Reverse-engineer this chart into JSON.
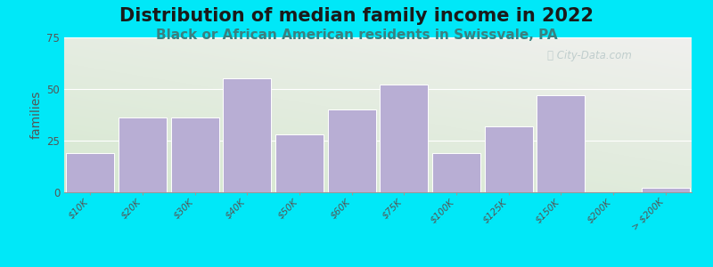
{
  "title": "Distribution of median family income in 2022",
  "subtitle": "Black or African American residents in Swissvale, PA",
  "ylabel": "families",
  "categories": [
    "$10K",
    "$20K",
    "$30K",
    "$40K",
    "$50K",
    "$60K",
    "$75K",
    "$100K",
    "$125K",
    "$150K",
    "$200K",
    "> $200K"
  ],
  "values": [
    19,
    36,
    36,
    55,
    28,
    40,
    52,
    19,
    32,
    47,
    0,
    2
  ],
  "bar_color": "#b8aed4",
  "bar_edge_color": "#ffffff",
  "background_outer": "#00e8f8",
  "background_plot_topleft": "#d6e8d0",
  "background_plot_bottomright": "#f0f0ee",
  "ylim": [
    0,
    75
  ],
  "yticks": [
    0,
    25,
    50,
    75
  ],
  "title_fontsize": 15,
  "subtitle_fontsize": 11,
  "ylabel_fontsize": 10,
  "watermark_text": "ⓘ City-Data.com",
  "watermark_color": "#b8c8c8"
}
